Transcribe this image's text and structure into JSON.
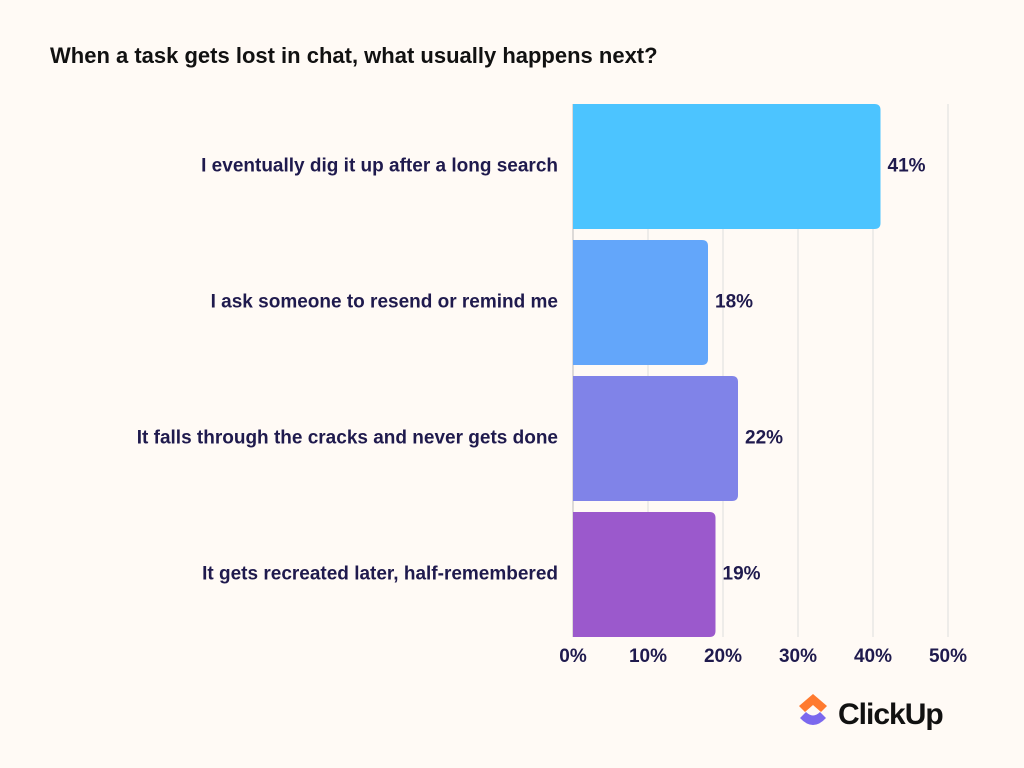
{
  "chart_data": {
    "type": "bar",
    "orientation": "horizontal",
    "title": "When a task gets lost in chat, what usually happens next?",
    "categories": [
      "I eventually dig it up after a long search",
      "I ask someone to resend or remind me",
      "It falls through the cracks and never gets done",
      "It gets recreated later, half-remembered"
    ],
    "values": [
      41,
      18,
      22,
      19
    ],
    "value_labels": [
      "41%",
      "18%",
      "22%",
      "19%"
    ],
    "colors": [
      "#4cc4ff",
      "#63a6fa",
      "#8083e8",
      "#9b59cc"
    ],
    "xlim": [
      0,
      50
    ],
    "xticks": [
      {
        "value": 0,
        "label": "0%"
      },
      {
        "value": 10,
        "label": "10%"
      },
      {
        "value": 20,
        "label": "20%"
      },
      {
        "value": 30,
        "label": "30%"
      },
      {
        "value": 40,
        "label": "40%"
      },
      {
        "value": 50,
        "label": "50%"
      }
    ],
    "grid": true
  },
  "logo": "ClickUp"
}
